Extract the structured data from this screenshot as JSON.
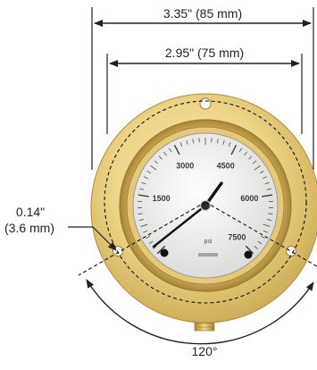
{
  "dimensions": {
    "outer_width": "3.35\" (85 mm)",
    "inner_width": "2.95\" (75 mm)",
    "mount_hole": "0.14\"",
    "mount_hole_metric": "(3.6 mm)",
    "angle": "120°"
  },
  "dial": {
    "scale": [
      "1500",
      "3000",
      "4500",
      "6000",
      "7500"
    ],
    "unit": "psi"
  },
  "colors": {
    "brass_light": "#f6e6a6",
    "brass_mid": "#e2c46e",
    "brass_dark": "#b8953f",
    "dial_face": "#f2f2f0",
    "needle": "#111111",
    "lines": "#222222"
  }
}
